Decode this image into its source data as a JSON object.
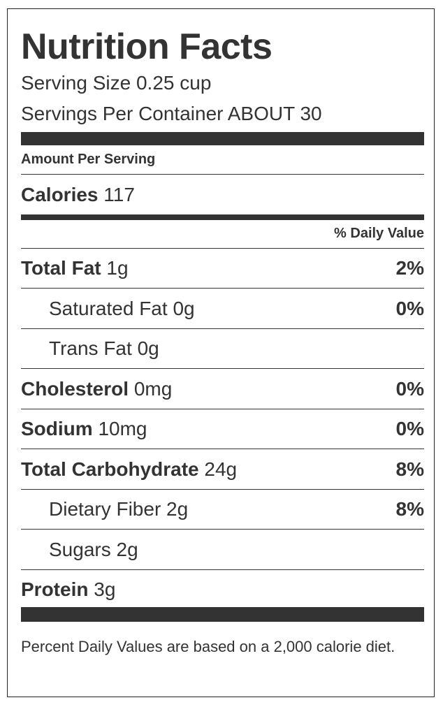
{
  "title": "Nutrition Facts",
  "serving_size": {
    "label": "Serving Size",
    "value": "0.25 cup"
  },
  "servings_per_container": {
    "label": "Servings Per Container",
    "value": "ABOUT 30"
  },
  "amount_per_serving": "Amount Per Serving",
  "calories": {
    "label": "Calories",
    "value": "117"
  },
  "daily_value_header": "% Daily Value",
  "rows": [
    {
      "name": "Total Fat",
      "amount": "1g",
      "dv": "2%"
    },
    {
      "name": "Saturated Fat",
      "amount": "0g",
      "dv": "0%"
    },
    {
      "name": "Trans Fat",
      "amount": "0g"
    },
    {
      "name": "Cholesterol",
      "amount": "0mg",
      "dv": "0%"
    },
    {
      "name": "Sodium",
      "amount": "10mg",
      "dv": "0%"
    },
    {
      "name": "Total Carbohydrate",
      "amount": "24g",
      "dv": "8%"
    },
    {
      "name": "Dietary Fiber",
      "amount": "2g",
      "dv": "8%"
    },
    {
      "name": "Sugars",
      "amount": "2g"
    },
    {
      "name": "Protein",
      "amount": "3g"
    }
  ],
  "footnote": "Percent Daily Values are based on a 2,000 calorie diet."
}
